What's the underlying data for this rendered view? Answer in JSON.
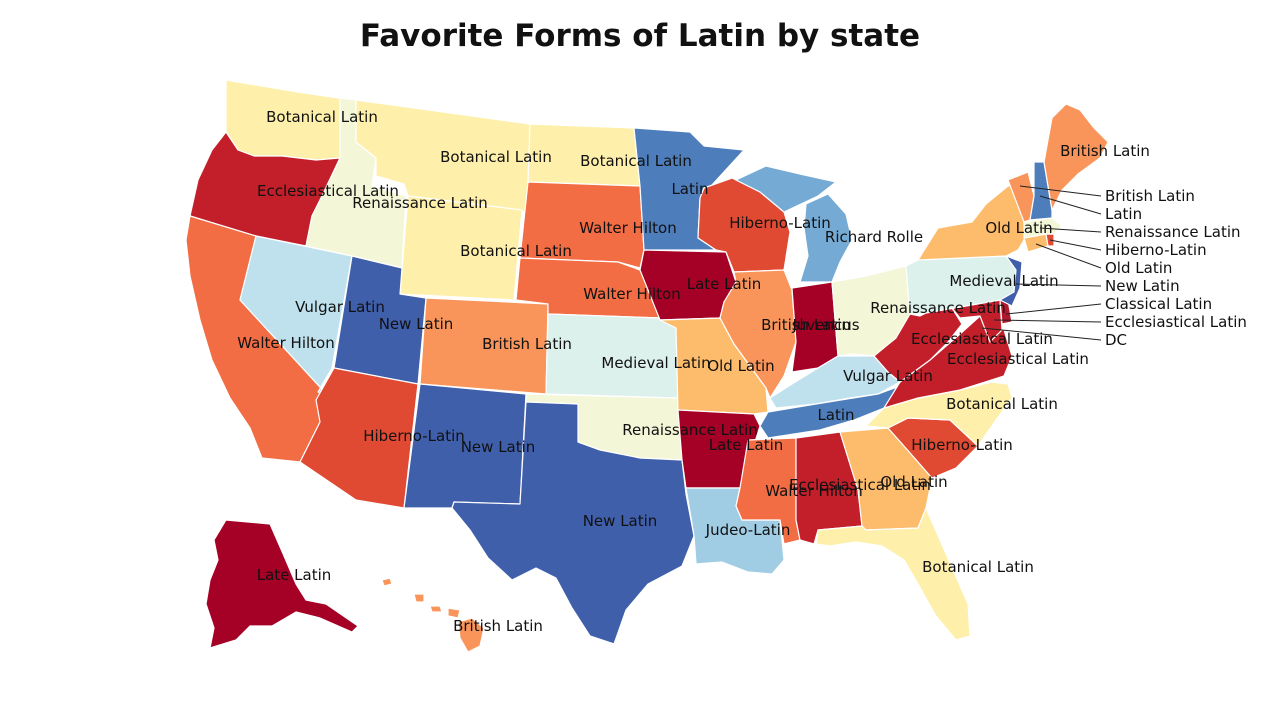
{
  "title": "Favorite Forms of Latin by state",
  "colors": {
    "Ecclesiastical Latin": "#c21f2a",
    "Late Latin": "#a50026",
    "Hiberno-Latin": "#e04a33",
    "Walter Hilton": "#f26c44",
    "British Latin": "#f9955a",
    "Old Latin": "#fdbc6b",
    "Botanical Latin": "#fef0ab",
    "Renaissance Latin": "#f3f7d7",
    "Medieval Latin": "#dcf0ec",
    "Vulgar Latin": "#bfe1ee",
    "Judeo-Latin": "#a0cde4",
    "Richard Rolle": "#74aad4",
    "Latin": "#4d7ebb",
    "New Latin": "#3f5fab",
    "Classical Latin": "#b0182d",
    "Juvencus": "#a50026"
  },
  "states": {
    "WA": "Botanical Latin",
    "OR": "Ecclesiastical Latin",
    "CA": "Walter Hilton",
    "NV": "Vulgar Latin",
    "ID": "Renaissance Latin",
    "MT": "Botanical Latin",
    "WY": "Botanical Latin",
    "UT": "New Latin",
    "AZ": "Hiberno-Latin",
    "CO": "British Latin",
    "NM": "New Latin",
    "ND": "Botanical Latin",
    "SD": "Walter Hilton",
    "NE": "Walter Hilton",
    "KS": "Medieval Latin",
    "OK": "Renaissance Latin",
    "TX": "New Latin",
    "MN": "Latin",
    "IA": "Late Latin",
    "MO": "Old Latin",
    "AR": "Late Latin",
    "LA": "Judeo-Latin",
    "WI": "Hiberno-Latin",
    "IL": "British Latin",
    "MI": "Richard Rolle",
    "IN": "Juvencus",
    "OH": "Renaissance Latin",
    "KY": "Vulgar Latin",
    "TN": "Latin",
    "MS": "Walter Hilton",
    "AL": "Ecclesiastical Latin",
    "GA": "Old Latin",
    "FL": "Botanical Latin",
    "SC": "Hiberno-Latin",
    "NC": "Botanical Latin",
    "VA": "Ecclesiastical Latin",
    "WV": "Ecclesiastical Latin",
    "MD": "Ecclesiastical Latin",
    "DE": "Classical Latin",
    "DC": "Ecclesiastical Latin",
    "PA": "Medieval Latin",
    "NJ": "New Latin",
    "NY": "Old Latin",
    "CT": "Old Latin",
    "RI": "Hiberno-Latin",
    "MA": "Renaissance Latin",
    "VT": "British Latin",
    "NH": "Latin",
    "ME": "British Latin",
    "AK": "Late Latin",
    "HI": "British Latin"
  },
  "labels": {
    "WA": "Botanical Latin",
    "OR": "Ecclesiastical Latin",
    "CA": "Walter Hilton",
    "NV": "Vulgar Latin",
    "ID": "Renaissance Latin",
    "MT": "Botanical Latin",
    "WY": "Botanical Latin",
    "UT": "New Latin",
    "AZ": "Hiberno-Latin",
    "CO": "British Latin",
    "NM": "New Latin",
    "ND": "Botanical Latin",
    "SD": "Walter Hilton",
    "NE": "Walter Hilton",
    "KS": "Medieval Latin",
    "OK": "Renaissance Latin",
    "TX": "New Latin",
    "MN": "Latin",
    "IA": "Late Latin",
    "MO": "Old Latin",
    "AR": "Late Latin",
    "LA": "Judeo-Latin",
    "WI": "Hiberno-Latin",
    "IL": "British Latin",
    "MI": "Richard Rolle",
    "IN": "Juvencus",
    "OH": "Renaissance Latin",
    "KY": "Vulgar Latin",
    "TN": "Latin",
    "MS": "Walter Hilton",
    "AL": "Ecclesiastical Latin",
    "GA": "Old Latin",
    "FL": "Botanical Latin",
    "SC": "Hiberno-Latin",
    "NC": "Botanical Latin",
    "VA": "Ecclesiastical Latin",
    "WV": "Ecclesiastical Latin",
    "PA": "Medieval Latin",
    "NY": "Old Latin",
    "ME": "British Latin",
    "AK": "Late Latin",
    "HI": "British Latin"
  },
  "callouts": {
    "VT": "British Latin",
    "NH": "Latin",
    "MA": "Renaissance Latin",
    "RI": "Hiberno-Latin",
    "CT": "Old Latin",
    "NJ": "New Latin",
    "DE": "Classical Latin",
    "MD": "Ecclesiastical Latin",
    "DC": "DC"
  }
}
